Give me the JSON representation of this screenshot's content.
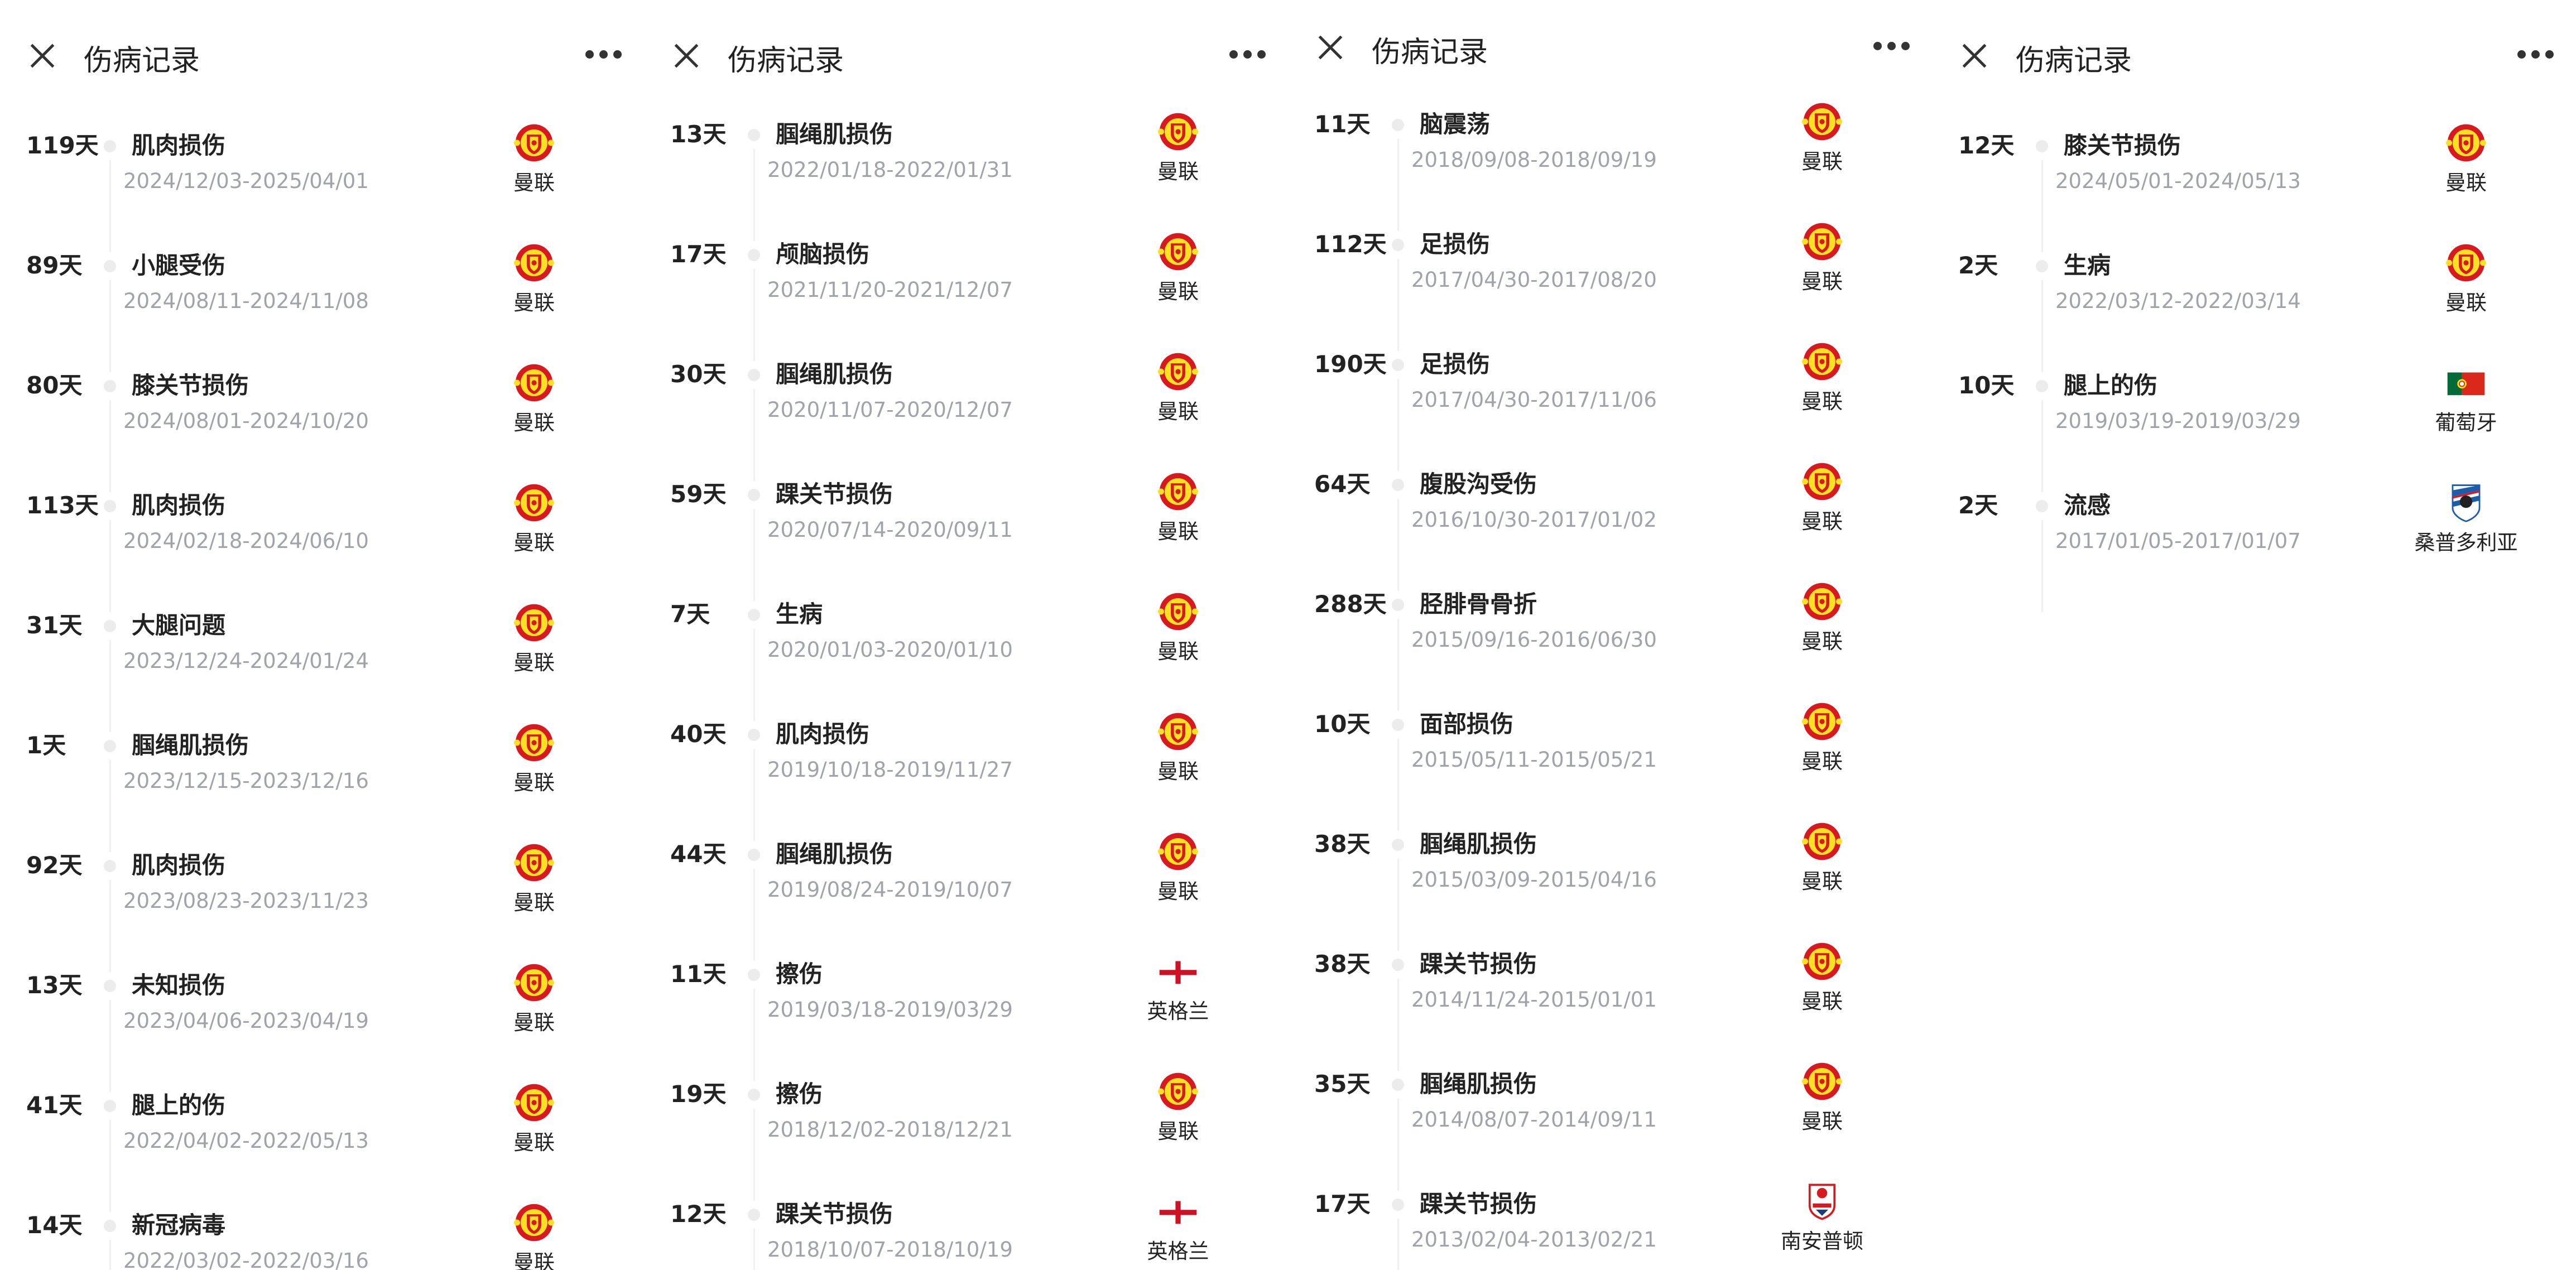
{
  "header": {
    "title": "伤病记录",
    "close_icon": "close-icon",
    "more_icon": "more-dots-icon"
  },
  "colors": {
    "muted": "#a0a3aa",
    "text": "#222222",
    "timeline": "#ececec"
  },
  "panels": [
    {
      "records": [
        {
          "days": "119天",
          "name": "肌肉损伤",
          "dates": "2024/12/03-2025/04/01",
          "team": "曼联",
          "icon": "man-utd-crest"
        },
        {
          "days": "89天",
          "name": "小腿受伤",
          "dates": "2024/08/11-2024/11/08",
          "team": "曼联",
          "icon": "man-utd-crest"
        },
        {
          "days": "80天",
          "name": "膝关节损伤",
          "dates": "2024/08/01-2024/10/20",
          "team": "曼联",
          "icon": "man-utd-crest"
        },
        {
          "days": "113天",
          "name": "肌肉损伤",
          "dates": "2024/02/18-2024/06/10",
          "team": "曼联",
          "icon": "man-utd-crest"
        },
        {
          "days": "31天",
          "name": "大腿问题",
          "dates": "2023/12/24-2024/01/24",
          "team": "曼联",
          "icon": "man-utd-crest"
        },
        {
          "days": "1天",
          "name": "腘绳肌损伤",
          "dates": "2023/12/15-2023/12/16",
          "team": "曼联",
          "icon": "man-utd-crest"
        },
        {
          "days": "92天",
          "name": "肌肉损伤",
          "dates": "2023/08/23-2023/11/23",
          "team": "曼联",
          "icon": "man-utd-crest"
        },
        {
          "days": "13天",
          "name": "未知损伤",
          "dates": "2023/04/06-2023/04/19",
          "team": "曼联",
          "icon": "man-utd-crest"
        },
        {
          "days": "41天",
          "name": "腿上的伤",
          "dates": "2022/04/02-2022/05/13",
          "team": "曼联",
          "icon": "man-utd-crest"
        },
        {
          "days": "14天",
          "name": "新冠病毒",
          "dates": "2022/03/02-2022/03/16",
          "team": "曼联",
          "icon": "man-utd-crest"
        }
      ]
    },
    {
      "records": [
        {
          "days": "13天",
          "name": "腘绳肌损伤",
          "dates": "2022/01/18-2022/01/31",
          "team": "曼联",
          "icon": "man-utd-crest"
        },
        {
          "days": "17天",
          "name": "颅脑损伤",
          "dates": "2021/11/20-2021/12/07",
          "team": "曼联",
          "icon": "man-utd-crest"
        },
        {
          "days": "30天",
          "name": "腘绳肌损伤",
          "dates": "2020/11/07-2020/12/07",
          "team": "曼联",
          "icon": "man-utd-crest"
        },
        {
          "days": "59天",
          "name": "踝关节损伤",
          "dates": "2020/07/14-2020/09/11",
          "team": "曼联",
          "icon": "man-utd-crest"
        },
        {
          "days": "7天",
          "name": "生病",
          "dates": "2020/01/03-2020/01/10",
          "team": "曼联",
          "icon": "man-utd-crest"
        },
        {
          "days": "40天",
          "name": "肌肉损伤",
          "dates": "2019/10/18-2019/11/27",
          "team": "曼联",
          "icon": "man-utd-crest"
        },
        {
          "days": "44天",
          "name": "腘绳肌损伤",
          "dates": "2019/08/24-2019/10/07",
          "team": "曼联",
          "icon": "man-utd-crest"
        },
        {
          "days": "11天",
          "name": "擦伤",
          "dates": "2019/03/18-2019/03/29",
          "team": "英格兰",
          "icon": "england-flag"
        },
        {
          "days": "19天",
          "name": "擦伤",
          "dates": "2018/12/02-2018/12/21",
          "team": "曼联",
          "icon": "man-utd-crest"
        },
        {
          "days": "12天",
          "name": "踝关节损伤",
          "dates": "2018/10/07-2018/10/19",
          "team": "英格兰",
          "icon": "england-flag"
        }
      ]
    },
    {
      "records": [
        {
          "days": "11天",
          "name": "脑震荡",
          "dates": "2018/09/08-2018/09/19",
          "team": "曼联",
          "icon": "man-utd-crest"
        },
        {
          "days": "112天",
          "name": "足损伤",
          "dates": "2017/04/30-2017/08/20",
          "team": "曼联",
          "icon": "man-utd-crest"
        },
        {
          "days": "190天",
          "name": "足损伤",
          "dates": "2017/04/30-2017/11/06",
          "team": "曼联",
          "icon": "man-utd-crest"
        },
        {
          "days": "64天",
          "name": "腹股沟受伤",
          "dates": "2016/10/30-2017/01/02",
          "team": "曼联",
          "icon": "man-utd-crest"
        },
        {
          "days": "288天",
          "name": "胫腓骨骨折",
          "dates": "2015/09/16-2016/06/30",
          "team": "曼联",
          "icon": "man-utd-crest"
        },
        {
          "days": "10天",
          "name": "面部损伤",
          "dates": "2015/05/11-2015/05/21",
          "team": "曼联",
          "icon": "man-utd-crest"
        },
        {
          "days": "38天",
          "name": "腘绳肌损伤",
          "dates": "2015/03/09-2015/04/16",
          "team": "曼联",
          "icon": "man-utd-crest"
        },
        {
          "days": "38天",
          "name": "踝关节损伤",
          "dates": "2014/11/24-2015/01/01",
          "team": "曼联",
          "icon": "man-utd-crest"
        },
        {
          "days": "35天",
          "name": "腘绳肌损伤",
          "dates": "2014/08/07-2014/09/11",
          "team": "曼联",
          "icon": "man-utd-crest"
        },
        {
          "days": "17天",
          "name": "踝关节损伤",
          "dates": "2013/02/04-2013/02/21",
          "team": "南安普顿",
          "icon": "southampton-crest"
        }
      ]
    },
    {
      "records": [
        {
          "days": "12天",
          "name": "膝关节损伤",
          "dates": "2024/05/01-2024/05/13",
          "team": "曼联",
          "icon": "man-utd-crest"
        },
        {
          "days": "2天",
          "name": "生病",
          "dates": "2022/03/12-2022/03/14",
          "team": "曼联",
          "icon": "man-utd-crest"
        },
        {
          "days": "10天",
          "name": "腿上的伤",
          "dates": "2019/03/19-2019/03/29",
          "team": "葡萄牙",
          "icon": "portugal-flag"
        },
        {
          "days": "2天",
          "name": "流感",
          "dates": "2017/01/05-2017/01/07",
          "team": "桑普多利亚",
          "icon": "sampdoria-crest"
        }
      ]
    }
  ]
}
